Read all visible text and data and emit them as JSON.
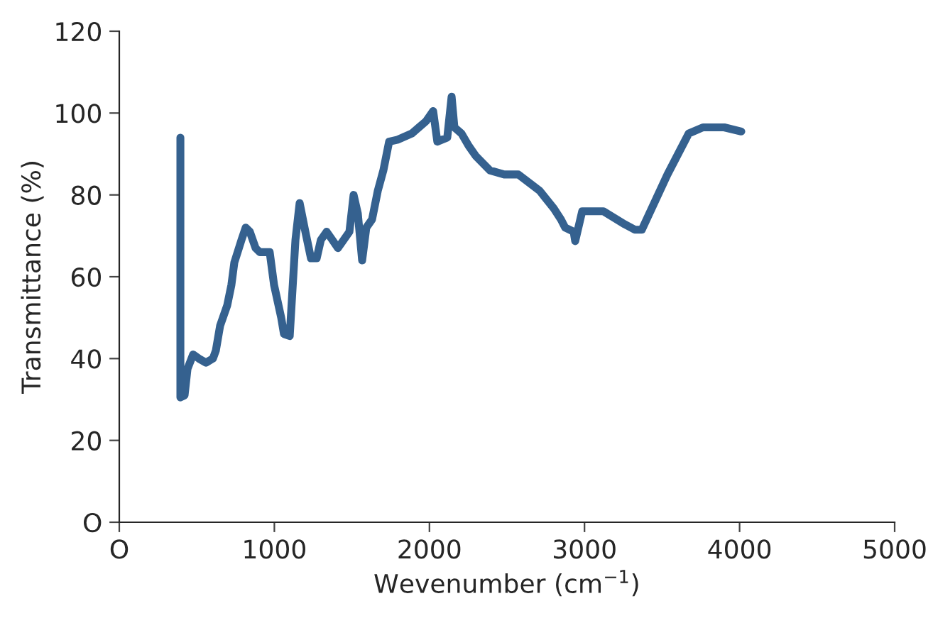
{
  "chart_data": {
    "type": "line",
    "xlabel": "Wevenumber (cm$^{−1}$)",
    "ylabel": "Transmittance (%)",
    "xlim": [
      0,
      5000
    ],
    "xticks": [
      {
        "value": 0,
        "label": "O"
      },
      1000,
      2000,
      3000,
      4000,
      5000
    ],
    "ylim": [
      0,
      120
    ],
    "yticks": [
      {
        "value": 0,
        "label": "O"
      },
      20,
      40,
      60,
      80,
      100,
      120
    ],
    "grid": false,
    "legend": false,
    "series": [
      {
        "color": "#35618f",
        "x": [
          394,
          394,
          421,
          440,
          476,
          513,
          559,
          604,
          623,
          650,
          696,
          723,
          742,
          788,
          815,
          842,
          879,
          906,
          934,
          970,
          998,
          1044,
          1062,
          1099,
          1136,
          1163,
          1200,
          1236,
          1273,
          1300,
          1337,
          1374,
          1410,
          1447,
          1484,
          1511,
          1538,
          1566,
          1593,
          1630,
          1667,
          1703,
          1740,
          1795,
          1886,
          1932,
          1978,
          2024,
          2051,
          2115,
          2143,
          2161,
          2207,
          2253,
          2299,
          2390,
          2482,
          2573,
          2711,
          2802,
          2848,
          2875,
          2930,
          2940,
          2985,
          3122,
          3260,
          3324,
          3370,
          3535,
          3672,
          3764,
          3901,
          4011
        ],
        "values": [
          94,
          30.5,
          31,
          37.5,
          41,
          40,
          39,
          40,
          42,
          48,
          53,
          58,
          63.5,
          69,
          72,
          71,
          67,
          66,
          66,
          66,
          58,
          50,
          46,
          45.5,
          69,
          78,
          71,
          64.5,
          64.5,
          69,
          71,
          69,
          67,
          69,
          71,
          80,
          75.5,
          64,
          72,
          74,
          81,
          86,
          93,
          93.5,
          95,
          96.5,
          98,
          100.5,
          93,
          94,
          104,
          96.5,
          95,
          92,
          89.5,
          86,
          85,
          85,
          81,
          76.7,
          74,
          72,
          71,
          68.7,
          76,
          76,
          72.8,
          71.5,
          71.5,
          85,
          95,
          96.5,
          96.5,
          95.5
        ]
      }
    ]
  }
}
